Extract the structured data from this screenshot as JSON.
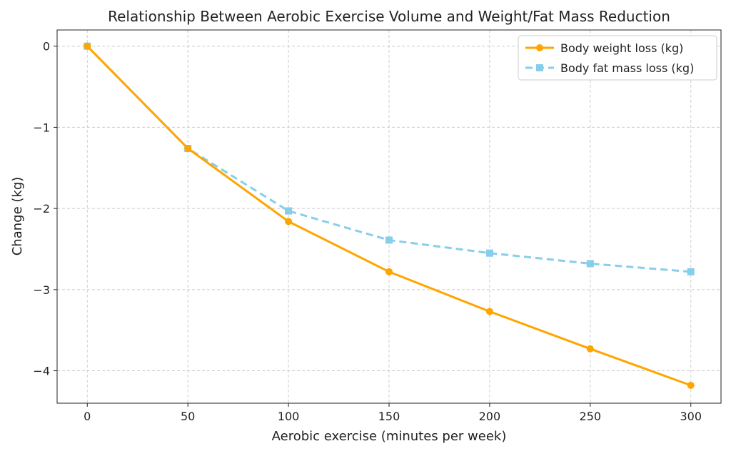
{
  "chart_data": {
    "type": "line",
    "title": "Relationship Between Aerobic Exercise Volume and Weight/Fat Mass Reduction",
    "xlabel": "Aerobic exercise (minutes per week)",
    "ylabel": "Change (kg)",
    "x": [
      0,
      50,
      100,
      150,
      200,
      250,
      300
    ],
    "xlim": [
      -15,
      315
    ],
    "ylim": [
      -4.4,
      0.2
    ],
    "xticks": [
      0,
      50,
      100,
      150,
      200,
      250,
      300
    ],
    "yticks": [
      0,
      -1,
      -2,
      -3,
      -4
    ],
    "ytick_labels": [
      "0",
      "−1",
      "−2",
      "−3",
      "−4"
    ],
    "grid": true,
    "legend_position": "top-right",
    "series": [
      {
        "name": "Body weight loss (kg)",
        "color": "#FFA500",
        "style": "solid",
        "marker": "circle",
        "values": [
          0,
          -1.26,
          -2.16,
          -2.78,
          -3.27,
          -3.73,
          -4.18
        ]
      },
      {
        "name": "Body fat mass loss (kg)",
        "color": "#87CEEB",
        "style": "dashed",
        "marker": "square",
        "values": [
          0,
          -1.26,
          -2.03,
          -2.39,
          -2.55,
          -2.68,
          -2.78
        ]
      }
    ]
  }
}
